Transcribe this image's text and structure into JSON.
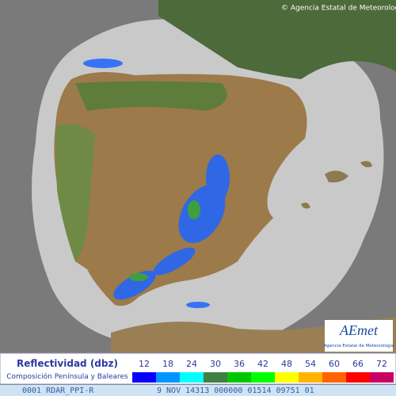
{
  "header": {
    "credit": "© Agencia Estatal de Meteorología"
  },
  "logo": {
    "name": "AEmet",
    "subtitle": "Agencia Estatal de Meteorología"
  },
  "legend": {
    "title": "Reflectividad (dbz)",
    "subtitle": "Composición Península y Baleares",
    "scale": [
      {
        "value": 12,
        "color": "#0a00fc"
      },
      {
        "value": 18,
        "color": "#0096ff"
      },
      {
        "value": 24,
        "color": "#00ffff"
      },
      {
        "value": 30,
        "color": "#3f7f3f"
      },
      {
        "value": 36,
        "color": "#00c800"
      },
      {
        "value": 42,
        "color": "#00ff00"
      },
      {
        "value": 48,
        "color": "#ffff00"
      },
      {
        "value": 54,
        "color": "#ffb400"
      },
      {
        "value": 60,
        "color": "#ff6400"
      },
      {
        "value": 66,
        "color": "#ff0000"
      },
      {
        "value": 72,
        "color": "#c80064"
      }
    ]
  },
  "footer": {
    "product": "0001 RDAR_PPI-R",
    "info": "9 NOV 14313 000000 01514 09751 01"
  }
}
